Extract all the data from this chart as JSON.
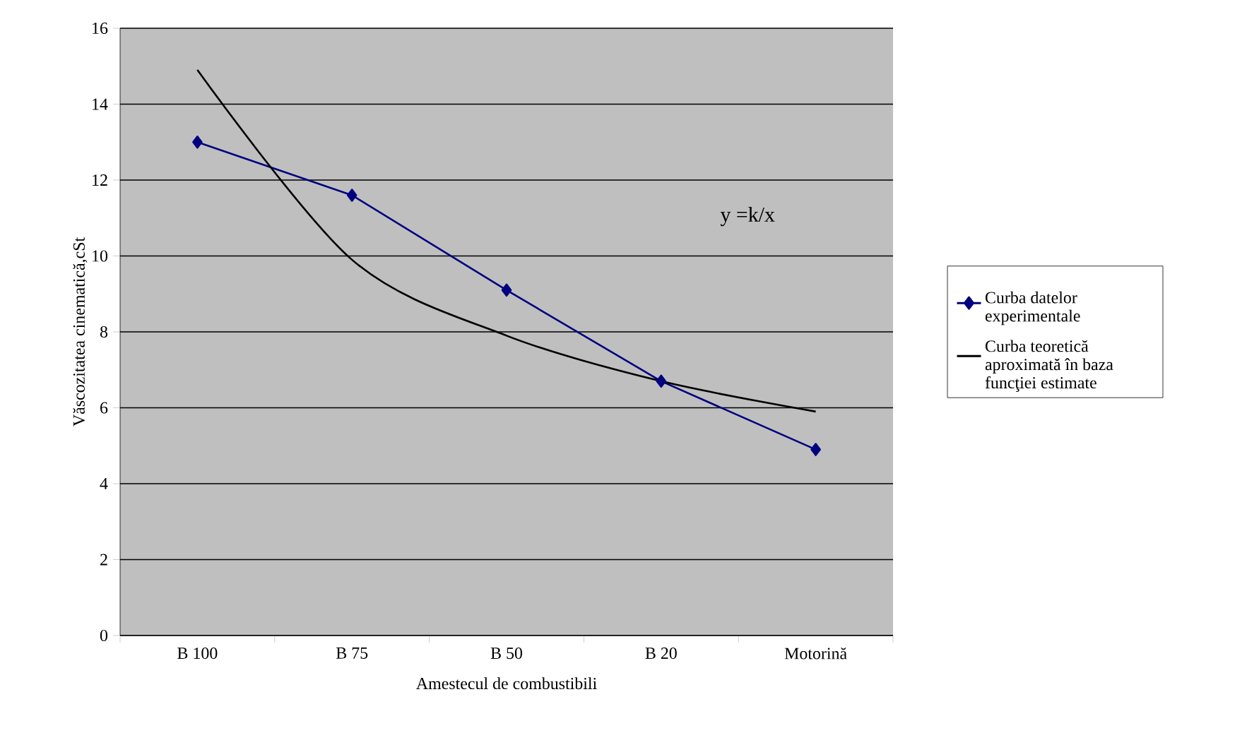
{
  "chart_data": {
    "type": "line",
    "xlabel": "Amestecul de combustibili",
    "ylabel": "Văscozitatea cinematică,cSt",
    "categories": [
      "B 100",
      "B 75",
      "B 50",
      "B 20",
      "Motorină"
    ],
    "ylim": [
      0,
      16
    ],
    "yticks": [
      0,
      2,
      4,
      6,
      8,
      10,
      12,
      14,
      16
    ],
    "grid": "y",
    "legend": "right",
    "annotations": [
      "y =k/x"
    ],
    "series": [
      {
        "name": "Curba datelor experimentale",
        "color": "#000080",
        "marker": "diamond",
        "values": [
          13.0,
          11.6,
          9.1,
          6.7,
          4.9
        ]
      },
      {
        "name": "Curba teoretică aproximată în baza funcţiei estimate",
        "color": "#000000",
        "marker": "none",
        "values": [
          14.9,
          9.9,
          7.9,
          6.7,
          5.9
        ]
      }
    ]
  }
}
